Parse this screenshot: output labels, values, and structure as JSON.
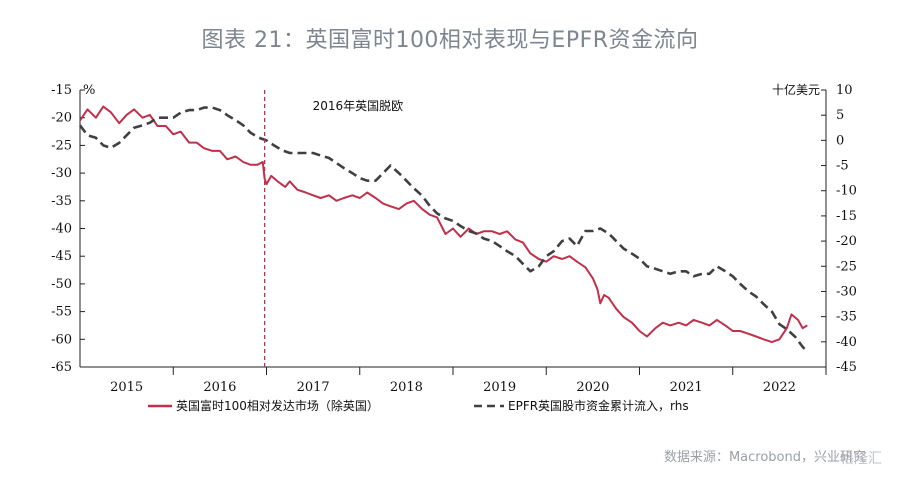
{
  "title": "图表 21：英国富时100相对表现与EPFR资金流向",
  "source": "数据来源：Macrobond，兴业研究",
  "watermark": "格隆汇",
  "chart_data": {
    "type": "line",
    "left_axis_unit": "%",
    "right_axis_unit": "十亿美元",
    "left_ylim": [
      -65,
      -15
    ],
    "left_ticks": [
      -15,
      -20,
      -25,
      -30,
      -35,
      -40,
      -45,
      -50,
      -55,
      -60,
      -65
    ],
    "right_ylim": [
      -45,
      10
    ],
    "right_ticks": [
      10,
      5,
      0,
      -5,
      -10,
      -15,
      -20,
      -25,
      -30,
      -35,
      -40,
      -45
    ],
    "x_range": [
      2014.5,
      2022.5
    ],
    "x_tick_labels": [
      "2015",
      "2016",
      "2017",
      "2018",
      "2019",
      "2020",
      "2021",
      "2022"
    ],
    "x_label_positions": [
      2015,
      2016,
      2017,
      2018,
      2019,
      2020,
      2021,
      2022
    ],
    "annotation": {
      "text": "2016年英国脱欧",
      "x": 2016.48
    },
    "grid": false,
    "legend_position": "bottom",
    "series": [
      {
        "name": "英国富时100相对发达市场（除英国）",
        "axis": "left",
        "color": "#c0304a",
        "style": "solid",
        "points": [
          [
            2014.5,
            -20.5
          ],
          [
            2014.58,
            -18.5
          ],
          [
            2014.67,
            -20
          ],
          [
            2014.75,
            -18
          ],
          [
            2014.83,
            -19
          ],
          [
            2014.92,
            -21
          ],
          [
            2015.0,
            -19.5
          ],
          [
            2015.08,
            -18.5
          ],
          [
            2015.17,
            -20
          ],
          [
            2015.25,
            -19.5
          ],
          [
            2015.33,
            -21.5
          ],
          [
            2015.42,
            -21.5
          ],
          [
            2015.5,
            -23
          ],
          [
            2015.58,
            -22.5
          ],
          [
            2015.67,
            -24.5
          ],
          [
            2015.75,
            -24.5
          ],
          [
            2015.83,
            -25.5
          ],
          [
            2015.92,
            -26
          ],
          [
            2016.0,
            -26
          ],
          [
            2016.08,
            -27.5
          ],
          [
            2016.17,
            -27
          ],
          [
            2016.25,
            -28
          ],
          [
            2016.33,
            -28.5
          ],
          [
            2016.4,
            -28.5
          ],
          [
            2016.46,
            -28
          ],
          [
            2016.48,
            -31
          ],
          [
            2016.5,
            -32
          ],
          [
            2016.55,
            -30.5
          ],
          [
            2016.62,
            -31.5
          ],
          [
            2016.7,
            -32.5
          ],
          [
            2016.75,
            -31.5
          ],
          [
            2016.83,
            -33
          ],
          [
            2016.92,
            -33.5
          ],
          [
            2017.0,
            -34
          ],
          [
            2017.08,
            -34.5
          ],
          [
            2017.17,
            -34
          ],
          [
            2017.25,
            -35
          ],
          [
            2017.33,
            -34.5
          ],
          [
            2017.42,
            -34
          ],
          [
            2017.5,
            -34.5
          ],
          [
            2017.58,
            -33.5
          ],
          [
            2017.67,
            -34.5
          ],
          [
            2017.75,
            -35.5
          ],
          [
            2017.83,
            -36
          ],
          [
            2017.92,
            -36.5
          ],
          [
            2018.0,
            -35.5
          ],
          [
            2018.08,
            -35
          ],
          [
            2018.17,
            -36.5
          ],
          [
            2018.25,
            -37.5
          ],
          [
            2018.33,
            -38
          ],
          [
            2018.42,
            -41
          ],
          [
            2018.5,
            -40
          ],
          [
            2018.58,
            -41.5
          ],
          [
            2018.67,
            -40
          ],
          [
            2018.75,
            -41
          ],
          [
            2018.83,
            -40.5
          ],
          [
            2018.92,
            -40.5
          ],
          [
            2019.0,
            -41
          ],
          [
            2019.08,
            -40.5
          ],
          [
            2019.17,
            -42
          ],
          [
            2019.25,
            -42.5
          ],
          [
            2019.33,
            -44.5
          ],
          [
            2019.42,
            -45.5
          ],
          [
            2019.5,
            -46
          ],
          [
            2019.58,
            -45
          ],
          [
            2019.67,
            -45.5
          ],
          [
            2019.75,
            -45
          ],
          [
            2019.83,
            -46
          ],
          [
            2019.92,
            -47
          ],
          [
            2020.0,
            -49
          ],
          [
            2020.05,
            -51
          ],
          [
            2020.08,
            -53.5
          ],
          [
            2020.12,
            -52
          ],
          [
            2020.17,
            -52.5
          ],
          [
            2020.25,
            -54.5
          ],
          [
            2020.33,
            -56
          ],
          [
            2020.42,
            -57
          ],
          [
            2020.5,
            -58.5
          ],
          [
            2020.58,
            -59.5
          ],
          [
            2020.67,
            -58
          ],
          [
            2020.75,
            -57
          ],
          [
            2020.83,
            -57.5
          ],
          [
            2020.92,
            -57
          ],
          [
            2021.0,
            -57.5
          ],
          [
            2021.08,
            -56.5
          ],
          [
            2021.17,
            -57
          ],
          [
            2021.25,
            -57.5
          ],
          [
            2021.33,
            -56.5
          ],
          [
            2021.42,
            -57.5
          ],
          [
            2021.5,
            -58.5
          ],
          [
            2021.58,
            -58.5
          ],
          [
            2021.67,
            -59
          ],
          [
            2021.75,
            -59.5
          ],
          [
            2021.83,
            -60
          ],
          [
            2021.92,
            -60.5
          ],
          [
            2022.0,
            -60
          ],
          [
            2022.08,
            -58
          ],
          [
            2022.13,
            -55.5
          ],
          [
            2022.2,
            -56.5
          ],
          [
            2022.25,
            -58
          ],
          [
            2022.3,
            -57.5
          ]
        ]
      },
      {
        "name": "EPFR英国股市资金累计流入，rhs",
        "axis": "right",
        "color": "#404040",
        "style": "dashed",
        "points": [
          [
            2014.5,
            3
          ],
          [
            2014.58,
            1
          ],
          [
            2014.67,
            0.5
          ],
          [
            2014.75,
            -1
          ],
          [
            2014.83,
            -1.5
          ],
          [
            2014.92,
            -0.5
          ],
          [
            2015.0,
            1
          ],
          [
            2015.08,
            2.5
          ],
          [
            2015.17,
            3
          ],
          [
            2015.25,
            3.5
          ],
          [
            2015.33,
            4.5
          ],
          [
            2015.42,
            4.5
          ],
          [
            2015.5,
            4.5
          ],
          [
            2015.58,
            5.5
          ],
          [
            2015.67,
            6
          ],
          [
            2015.75,
            6
          ],
          [
            2015.83,
            6.5
          ],
          [
            2015.92,
            6.5
          ],
          [
            2016.0,
            6
          ],
          [
            2016.08,
            5
          ],
          [
            2016.17,
            4
          ],
          [
            2016.25,
            3
          ],
          [
            2016.33,
            1.5
          ],
          [
            2016.42,
            0.5
          ],
          [
            2016.5,
            0
          ],
          [
            2016.58,
            -1
          ],
          [
            2016.67,
            -2
          ],
          [
            2016.75,
            -2.5
          ],
          [
            2016.83,
            -2.5
          ],
          [
            2016.92,
            -2.5
          ],
          [
            2017.0,
            -2.5
          ],
          [
            2017.08,
            -3
          ],
          [
            2017.17,
            -3.5
          ],
          [
            2017.25,
            -4.5
          ],
          [
            2017.33,
            -5.5
          ],
          [
            2017.42,
            -6.5
          ],
          [
            2017.5,
            -7.5
          ],
          [
            2017.58,
            -8
          ],
          [
            2017.67,
            -8
          ],
          [
            2017.75,
            -6.5
          ],
          [
            2017.83,
            -5
          ],
          [
            2017.92,
            -6.5
          ],
          [
            2018.0,
            -8
          ],
          [
            2018.08,
            -9.5
          ],
          [
            2018.17,
            -11
          ],
          [
            2018.25,
            -13
          ],
          [
            2018.33,
            -14.5
          ],
          [
            2018.42,
            -15.5
          ],
          [
            2018.5,
            -16
          ],
          [
            2018.58,
            -17
          ],
          [
            2018.67,
            -18
          ],
          [
            2018.75,
            -18.5
          ],
          [
            2018.83,
            -19.5
          ],
          [
            2018.92,
            -20
          ],
          [
            2019.0,
            -21
          ],
          [
            2019.08,
            -22
          ],
          [
            2019.17,
            -23
          ],
          [
            2019.25,
            -24.5
          ],
          [
            2019.33,
            -26
          ],
          [
            2019.42,
            -25
          ],
          [
            2019.5,
            -23
          ],
          [
            2019.58,
            -22
          ],
          [
            2019.67,
            -20
          ],
          [
            2019.75,
            -19.5
          ],
          [
            2019.83,
            -21
          ],
          [
            2019.92,
            -18
          ],
          [
            2020.0,
            -18
          ],
          [
            2020.08,
            -17.5
          ],
          [
            2020.17,
            -18.5
          ],
          [
            2020.25,
            -20
          ],
          [
            2020.33,
            -21.5
          ],
          [
            2020.42,
            -22.5
          ],
          [
            2020.5,
            -23.5
          ],
          [
            2020.58,
            -25
          ],
          [
            2020.67,
            -25.5
          ],
          [
            2020.75,
            -26
          ],
          [
            2020.83,
            -26.5
          ],
          [
            2020.92,
            -26
          ],
          [
            2021.0,
            -26
          ],
          [
            2021.08,
            -27
          ],
          [
            2021.17,
            -26.5
          ],
          [
            2021.25,
            -26.5
          ],
          [
            2021.33,
            -25
          ],
          [
            2021.42,
            -26
          ],
          [
            2021.5,
            -27
          ],
          [
            2021.58,
            -28.5
          ],
          [
            2021.67,
            -30
          ],
          [
            2021.75,
            -31
          ],
          [
            2021.83,
            -32.5
          ],
          [
            2021.92,
            -34
          ],
          [
            2022.0,
            -36.5
          ],
          [
            2022.08,
            -37.5
          ],
          [
            2022.17,
            -39
          ],
          [
            2022.25,
            -41
          ],
          [
            2022.3,
            -42
          ]
        ]
      }
    ]
  }
}
